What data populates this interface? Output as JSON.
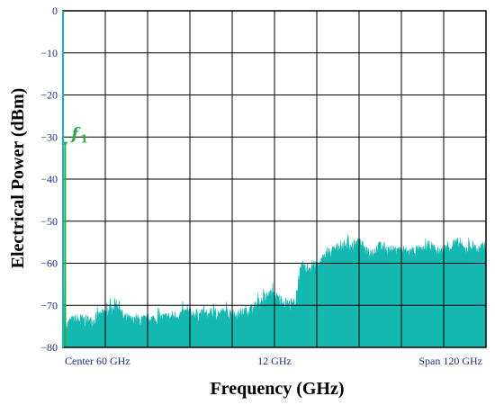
{
  "chart_data": {
    "type": "area",
    "xlabel": "Frequency (GHz)",
    "ylabel": "Electrical Power (dBm)",
    "ylim": [
      -80,
      0
    ],
    "xlim": [
      0,
      120
    ],
    "y_ticks": [
      0,
      -10,
      -20,
      -30,
      -40,
      -50,
      -60,
      -70,
      -80
    ],
    "x_tick_labels": [
      "Center 60 GHz",
      "12 GHz",
      "Span 120  GHz"
    ],
    "grid": true,
    "fill_color": "#14b8b0",
    "marker": {
      "label": "f",
      "subscript": "1",
      "x": 0.6,
      "y": -32,
      "color": "#2aa84a"
    },
    "series": [
      {
        "x": [
          0,
          0.2,
          0.4,
          0.5,
          0.6,
          0.7,
          0.8,
          1,
          2,
          5,
          8,
          10,
          12,
          14,
          14.5,
          15,
          15.5,
          16,
          17,
          20,
          25,
          30,
          35,
          40,
          45,
          50,
          52,
          54,
          55,
          56,
          57,
          58,
          59,
          60,
          61,
          62,
          63,
          64,
          65,
          66,
          67,
          68,
          69,
          70,
          71,
          72,
          73,
          74,
          75,
          76,
          77,
          78,
          79,
          80,
          82,
          84,
          86,
          88,
          90,
          92,
          94,
          96,
          98,
          100,
          102,
          104,
          106,
          108,
          110,
          112,
          114,
          116,
          118,
          120
        ],
        "y": [
          -80,
          -76,
          -74,
          -60,
          -32,
          -60,
          -76,
          -75,
          -74,
          -73.5,
          -74,
          -73,
          -72,
          -71,
          -70,
          -69.5,
          -70,
          -70.5,
          -73,
          -74,
          -73.5,
          -73,
          -72,
          -72.5,
          -72,
          -72.5,
          -71.5,
          -71,
          -70,
          -69.5,
          -69,
          -68,
          -67.5,
          -68,
          -68.5,
          -69,
          -69.5,
          -70,
          -70,
          -69.5,
          -63,
          -61,
          -61.5,
          -61,
          -61,
          -61,
          -60,
          -59,
          -58,
          -57.5,
          -57,
          -56.5,
          -56.5,
          -56,
          -56,
          -55.5,
          -57,
          -57.5,
          -56,
          -57,
          -57.5,
          -57,
          -57.5,
          -57,
          -57.5,
          -56,
          -57.5,
          -57,
          -56,
          -55.5,
          -57,
          -56,
          -57,
          -56
        ]
      }
    ]
  }
}
